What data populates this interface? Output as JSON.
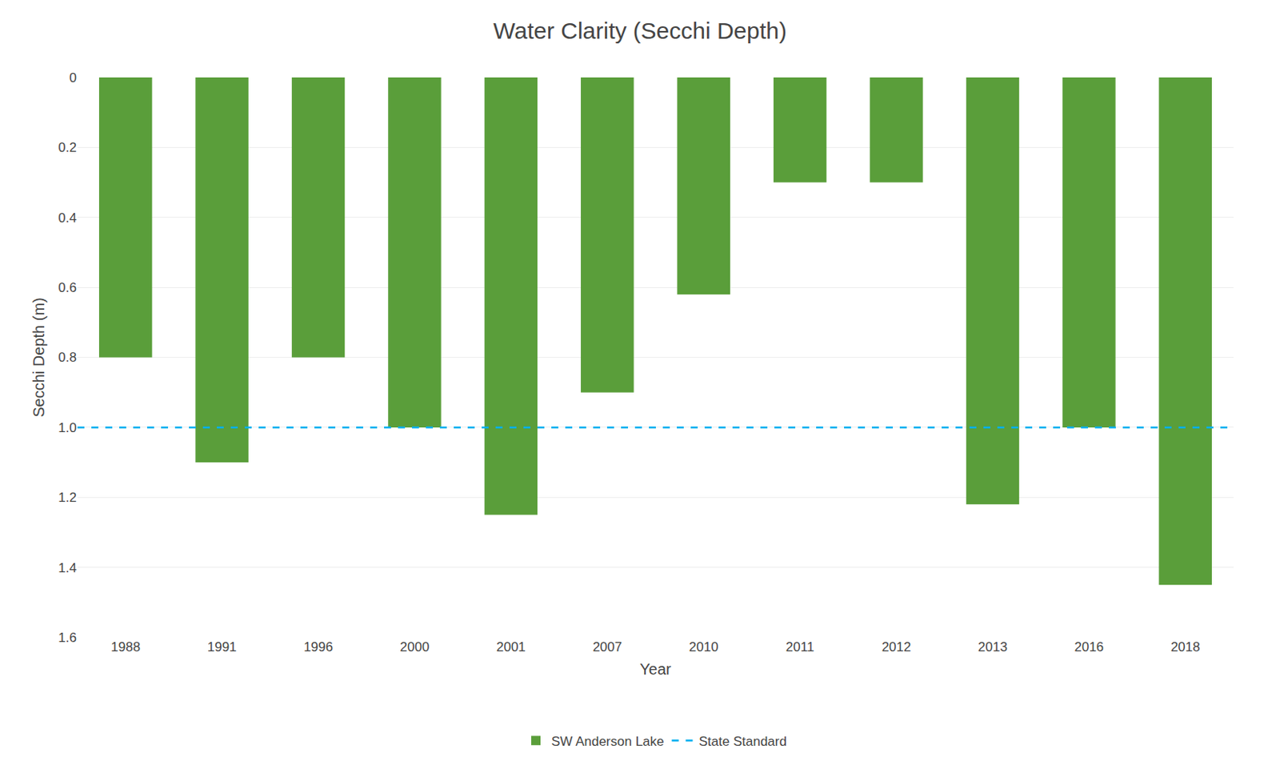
{
  "chart_data": {
    "type": "bar",
    "title": "Water Clarity (Secchi Depth)",
    "xlabel": "Year",
    "ylabel": "Secchi Depth (m)",
    "categories": [
      "1988",
      "1991",
      "1996",
      "2000",
      "2001",
      "2007",
      "2010",
      "2011",
      "2012",
      "2013",
      "2016",
      "2018"
    ],
    "series": [
      {
        "name": "SW Anderson Lake",
        "type": "bar",
        "color": "#5a9e3a",
        "values": [
          0.8,
          1.1,
          0.8,
          1.0,
          1.25,
          0.9,
          0.62,
          0.3,
          0.3,
          1.22,
          1.0,
          1.45
        ]
      }
    ],
    "reference_lines": [
      {
        "name": "State Standard",
        "value": 1.0,
        "color": "#00b0f0",
        "line_style": "dashed"
      }
    ],
    "ylim": [
      1.6,
      0
    ],
    "yticks": [
      0,
      0.2,
      0.4,
      0.6,
      0.8,
      {
        "value": 1.0,
        "label": "1.0"
      },
      1.2,
      1.4,
      1.6
    ],
    "grid": true,
    "legend": "bottom"
  }
}
